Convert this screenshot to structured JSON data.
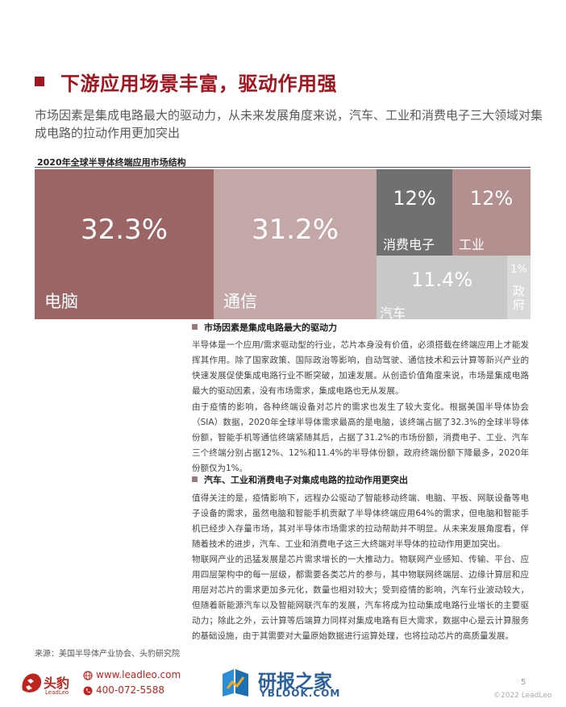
{
  "title": "下游应用场景丰富，驱动作用强",
  "subtitle": "市场因素是集成电路最大的驱动力，从未来发展角度来说，汽车、工业和消费电子三大领域对集成电路的拉动作用更加突出",
  "chart_title": "2020年全球半导体终端应用市场结构",
  "chart_data": {
    "type": "treemap",
    "title": "2020年全球半导体终端应用市场结构",
    "items": [
      {
        "label": "电脑",
        "pct_text": "32.3%",
        "value": 32.3,
        "color": "#9b6565"
      },
      {
        "label": "通信",
        "pct_text": "31.2%",
        "value": 31.2,
        "color": "#c4a8a8"
      },
      {
        "label": "消费电子",
        "pct_text": "12%",
        "value": 12,
        "color": "#707070"
      },
      {
        "label": "工业",
        "pct_text": "12%",
        "value": 12,
        "color": "#b48f8f"
      },
      {
        "label": "汽车",
        "pct_text": "11.4%",
        "value": 11.4,
        "color": "#c8c8c8"
      },
      {
        "label": "政府",
        "pct_text": "1%",
        "value": 1,
        "color": "#d9d9d9"
      }
    ]
  },
  "sections": [
    {
      "heading": "市场因素是集成电路最大的驱动力",
      "paragraphs": [
        "半导体是一个应用/需求驱动型的行业，芯片本身没有价值，必须搭载在终端应用上才能发挥其作用。除了国家政策、国际政治等影响，自动驾驶、通信技术和云计算等新兴产业的快速发展促使集成电路行业不断突破，加速发展。从创造价值角度来说，市场是集成电路最大的驱动因素，没有市场需求，集成电路也无从发展。",
        "由于疫情的影响，各种终端设备对芯片的需求也发生了较大变化。根据美国半导体协会（SIA）数据，2020年全球半导体需求最高的是电脑，该终端占据了32.3%的全球半导体份额，智能手机等通信终端紧随其后，占据了31.2%的市场份额，消费电子、工业、汽车三个终端分别占据12%、12%和11.4%的半导体份额，政府终端份额下降最多，2020年份额仅为1%。"
      ]
    },
    {
      "heading": "汽车、工业和消费电子对集成电路的拉动作用更突出",
      "paragraphs": [
        "值得关注的是，疫情影响下，远程办公驱动了智能移动终端、电脑、平板、网联设备等电子设备的需求，虽然电脑和智能手机贡献了半导体终端应用64%的需求，但电脑和智能手机已经步入存量市场，其对半导体市场需求的拉动帮助并不明显。从未来发展角度看，伴随着技术的进步，汽车、工业和消费电子这三大终端对半导体的拉动作用更加突出。",
        "物联网产业的迅猛发展是芯片需求增长的一大推动力。物联网产业感知、传输、平台、应用四层架构中的每一层级，都需要各类芯片的参与，其中物联网终端层、边缘计算层和应用层对芯片的需求更加多元化，数量也相对较大；受到疫情的影响，汽车行业波动较大，但随着新能源汽车以及智能网联汽车的发展，汽车将成为拉动集成电路行业增长的主要驱动力；除此之外，云计算等后端算力同样对集成电路有巨大需求，数据中心是云计算服务的基础设施，由于其需要对大量原始数据进行运算处理，也将拉动芯片的高质量发展。"
      ]
    }
  ],
  "source": "来源：美国半导体产业协会、头豹研究院",
  "footer": {
    "logo_cn": "头豹",
    "logo_en": "LeadLeo",
    "website": "www.leadleo.com",
    "phone": "400-072-5588",
    "watermark_cn": "研报之家",
    "watermark_en": "YBLOOK.COM",
    "page": "5",
    "copyright": "©2022 LeadLeo"
  },
  "icons": [
    "bullet-square",
    "tiger-logo",
    "globe-icon",
    "phone-icon",
    "book-logo"
  ]
}
